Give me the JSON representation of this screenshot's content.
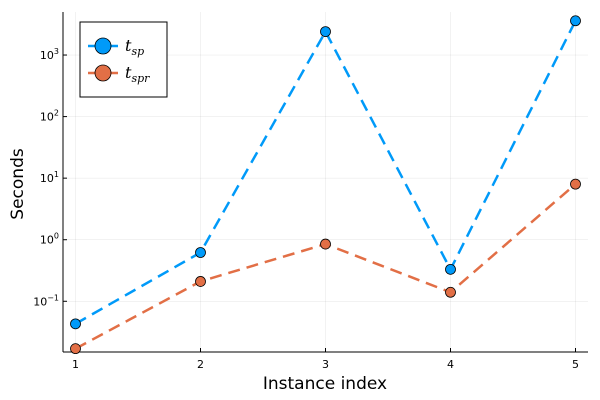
{
  "chart_data": {
    "type": "line",
    "xlabel": "Instance index",
    "ylabel": "Seconds",
    "x": [
      1,
      2,
      3,
      4,
      5
    ],
    "xlim": [
      0.9,
      5.1
    ],
    "ylim": [
      0.015,
      5000
    ],
    "yscale": "log",
    "grid": true,
    "legend_position": "top-left",
    "x_ticks": [
      1,
      2,
      3,
      4,
      5
    ],
    "y_ticks": [
      {
        "value": 0.1,
        "base": "10",
        "exp": "−1"
      },
      {
        "value": 1,
        "base": "10",
        "exp": "0"
      },
      {
        "value": 10,
        "base": "10",
        "exp": "1"
      },
      {
        "value": 100,
        "base": "10",
        "exp": "2"
      },
      {
        "value": 1000,
        "base": "10",
        "exp": "3"
      }
    ],
    "series": [
      {
        "name": "t",
        "subscript": "sp",
        "color": "#009af9",
        "values": [
          0.043,
          0.62,
          2400,
          0.33,
          3600
        ]
      },
      {
        "name": "t",
        "subscript": "spr",
        "color": "#e26f46",
        "values": [
          0.017,
          0.21,
          0.85,
          0.14,
          8.0
        ]
      }
    ]
  }
}
